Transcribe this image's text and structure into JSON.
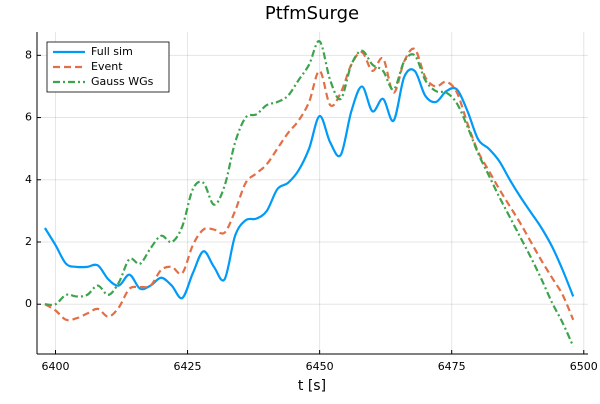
{
  "chart_data": {
    "type": "line",
    "title": "PtfmSurge",
    "x_label": "t [s]",
    "x": [
      6398,
      6400,
      6402,
      6404,
      6406,
      6408,
      6410,
      6412,
      6414,
      6416,
      6418,
      6420,
      6422,
      6424,
      6426,
      6428,
      6430,
      6432,
      6434,
      6436,
      6438,
      6440,
      6442,
      6444,
      6446,
      6448,
      6450,
      6452,
      6454,
      6456,
      6458,
      6460,
      6462,
      6464,
      6466,
      6468,
      6470,
      6472,
      6474,
      6476,
      6478,
      6480,
      6482,
      6484,
      6486,
      6488,
      6490,
      6492,
      6494,
      6496,
      6498
    ],
    "series": [
      {
        "name": "Full sim",
        "color": "#009af9",
        "style": "solid",
        "values": [
          2.45,
          1.9,
          1.3,
          1.2,
          1.2,
          1.25,
          0.8,
          0.6,
          0.95,
          0.5,
          0.6,
          0.85,
          0.6,
          0.2,
          1.0,
          1.7,
          1.2,
          0.8,
          2.2,
          2.7,
          2.75,
          3.0,
          3.7,
          3.9,
          4.3,
          5.0,
          6.05,
          5.2,
          4.8,
          6.2,
          7.0,
          6.2,
          6.6,
          5.9,
          7.3,
          7.5,
          6.7,
          6.5,
          6.85,
          6.9,
          6.2,
          5.3,
          5.0,
          4.6,
          4.0,
          3.45,
          2.95,
          2.45,
          1.85,
          1.1,
          0.25
        ]
      },
      {
        "name": "Event",
        "color": "#e26f46",
        "style": "dash",
        "values": [
          0,
          -0.2,
          -0.5,
          -0.45,
          -0.3,
          -0.15,
          -0.4,
          -0.1,
          0.5,
          0.55,
          0.6,
          1.1,
          1.2,
          1.0,
          1.9,
          2.4,
          2.4,
          2.3,
          3.0,
          3.9,
          4.2,
          4.5,
          5.0,
          5.5,
          5.9,
          6.5,
          7.5,
          6.4,
          6.8,
          7.7,
          8.1,
          7.5,
          7.9,
          6.8,
          7.8,
          8.2,
          7.3,
          7.0,
          7.15,
          6.8,
          5.8,
          4.9,
          4.3,
          3.7,
          3.15,
          2.6,
          2.0,
          1.4,
          0.85,
          0.3,
          -0.5
        ]
      },
      {
        "name": "Gauss WGs",
        "color": "#3da44d",
        "style": "dashdot",
        "values": [
          0,
          0,
          0.3,
          0.25,
          0.3,
          0.6,
          0.3,
          0.7,
          1.45,
          1.3,
          1.8,
          2.2,
          2.0,
          2.5,
          3.7,
          3.9,
          3.2,
          3.8,
          5.2,
          6.0,
          6.1,
          6.4,
          6.5,
          6.7,
          7.2,
          7.7,
          8.45,
          7.2,
          6.6,
          7.7,
          8.15,
          7.7,
          7.5,
          6.9,
          7.8,
          8.0,
          7.2,
          6.85,
          6.8,
          6.45,
          5.7,
          4.85,
          4.15,
          3.45,
          2.8,
          2.15,
          1.5,
          0.8,
          0.05,
          -0.6,
          -1.35
        ]
      }
    ],
    "xlim": [
      6396.5,
      6500.8
    ],
    "xticks": [
      6400,
      6425,
      6450,
      6475,
      6500
    ],
    "ylim": [
      -1.6,
      8.75
    ],
    "yticks": [
      0,
      2,
      4,
      6,
      8
    ],
    "grid": true,
    "legend": "top-left"
  }
}
